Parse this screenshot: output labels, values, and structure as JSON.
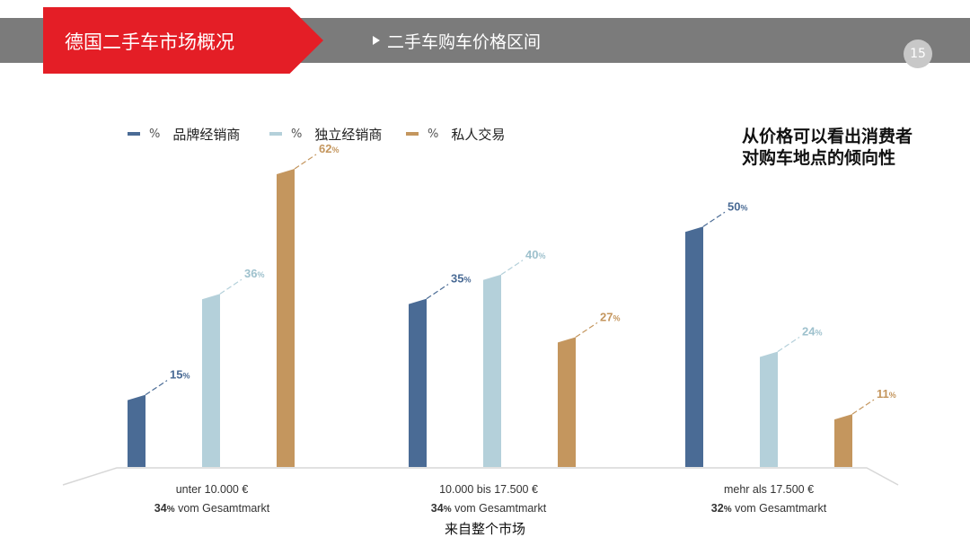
{
  "header": {
    "title": "德国二手车市场概况",
    "subtitle": "二手车购车价格区间",
    "page_number": "15"
  },
  "note_lines": [
    "从价格可以看出消费者",
    "对购车地点的倾向性"
  ],
  "footer_label": "来自整个市场",
  "chart_data": {
    "type": "bar",
    "ylim": [
      0,
      70
    ],
    "grid": false,
    "legend_position": "top-left",
    "legend": [
      {
        "pct": "%",
        "label": "品牌经销商"
      },
      {
        "pct": "%",
        "label": "独立经销商"
      },
      {
        "pct": "%",
        "label": "私人交易"
      }
    ],
    "categories": [
      {
        "name": "unter 10.000 €",
        "share": "34",
        "share_unit": "%",
        "share_text": "vom Gesamtmarkt"
      },
      {
        "name": "10.000 bis 17.500 €",
        "share": "34",
        "share_unit": "%",
        "share_text": "vom Gesamtmarkt"
      },
      {
        "name": "mehr als 17.500 €",
        "share": "32",
        "share_unit": "%",
        "share_text": "vom Gesamtmarkt"
      }
    ],
    "series": [
      {
        "name": "品牌经销商",
        "color": "#4a6b95",
        "values": [
          15,
          35,
          50
        ]
      },
      {
        "name": "独立经销商",
        "color": "#b4d0da",
        "values": [
          36,
          40,
          24
        ]
      },
      {
        "name": "私人交易",
        "color": "#c4965e",
        "values": [
          62,
          27,
          11
        ]
      }
    ],
    "value_suffix": "%"
  }
}
